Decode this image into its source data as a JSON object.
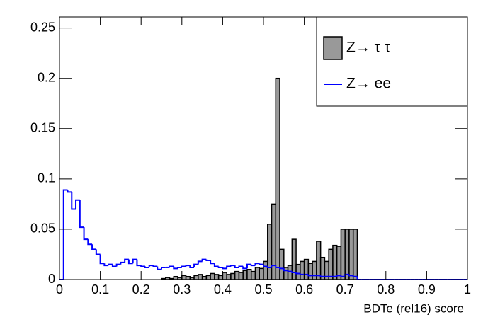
{
  "chart_data": {
    "type": "histogram",
    "x_label": "BDTe (rel16) score",
    "bins": [
      0,
      0.01,
      0.02,
      0.03,
      0.04,
      0.05,
      0.06,
      0.07,
      0.08,
      0.09,
      0.1,
      0.11,
      0.12,
      0.13,
      0.14,
      0.15,
      0.16,
      0.17,
      0.18,
      0.19,
      0.2,
      0.21,
      0.22,
      0.23,
      0.24,
      0.25,
      0.26,
      0.27,
      0.28,
      0.29,
      0.3,
      0.31,
      0.32,
      0.33,
      0.34,
      0.35,
      0.36,
      0.37,
      0.38,
      0.39,
      0.4,
      0.41,
      0.42,
      0.43,
      0.44,
      0.45,
      0.46,
      0.47,
      0.48,
      0.49,
      0.5,
      0.51,
      0.52,
      0.53,
      0.54,
      0.55,
      0.56,
      0.57,
      0.58,
      0.59,
      0.6,
      0.61,
      0.62,
      0.63,
      0.64,
      0.65,
      0.66,
      0.67,
      0.68,
      0.69,
      0.7,
      0.71,
      0.72,
      0.73,
      0.74,
      0.75,
      0.76,
      0.77,
      0.78,
      0.79,
      0.8,
      0.81,
      0.82,
      0.83,
      0.84,
      0.85,
      0.86,
      0.87,
      0.88,
      0.89,
      0.9,
      0.91,
      0.92,
      0.93,
      0.94,
      0.95,
      0.96,
      0.97,
      0.98,
      0.99,
      1
    ],
    "series": [
      {
        "name": "Z→ τ τ",
        "color": "#999999",
        "style": "filled",
        "values": [
          0,
          0,
          0,
          0,
          0,
          0,
          0,
          0,
          0,
          0,
          0,
          0,
          0,
          0,
          0,
          0,
          0,
          0,
          0,
          0,
          0,
          0,
          0,
          0,
          0,
          0.001,
          0.002,
          0.001,
          0.003,
          0.002,
          0.004,
          0.003,
          0.002,
          0.004,
          0.005,
          0.003,
          0.004,
          0.006,
          0.005,
          0.004,
          0.007,
          0.005,
          0.006,
          0.008,
          0.007,
          0.009,
          0.01,
          0.008,
          0.012,
          0.011,
          0.018,
          0.055,
          0.075,
          0.2,
          0.03,
          0.012,
          0.014,
          0.04,
          0.015,
          0.018,
          0.02,
          0.016,
          0.018,
          0.038,
          0.022,
          0.018,
          0.03,
          0.034,
          0.033,
          0.05,
          0.05,
          0.05,
          0.05,
          0,
          0,
          0,
          0,
          0,
          0,
          0,
          0,
          0,
          0,
          0,
          0,
          0,
          0,
          0,
          0,
          0,
          0,
          0,
          0,
          0,
          0,
          0,
          0,
          0,
          0,
          0
        ]
      },
      {
        "name": "Z→ ee",
        "color": "#0000ff",
        "style": "line",
        "values": [
          0,
          0.089,
          0.087,
          0.07,
          0.079,
          0.052,
          0.04,
          0.035,
          0.03,
          0.025,
          0.016,
          0.014,
          0.015,
          0.013,
          0.015,
          0.017,
          0.02,
          0.016,
          0.02,
          0.014,
          0.013,
          0.012,
          0.014,
          0.013,
          0.01,
          0.012,
          0.012,
          0.013,
          0.011,
          0.012,
          0.013,
          0.014,
          0.012,
          0.015,
          0.018,
          0.02,
          0.019,
          0.016,
          0.013,
          0.012,
          0.011,
          0.013,
          0.014,
          0.012,
          0.013,
          0.011,
          0.015,
          0.014,
          0.016,
          0.015,
          0.013,
          0.012,
          0.014,
          0.012,
          0.011,
          0.009,
          0.008,
          0.007,
          0.006,
          0.005,
          0.005,
          0.004,
          0.004,
          0.004,
          0.003,
          0.003,
          0.003,
          0.003,
          0.004,
          0.003,
          0.005,
          0.004,
          0.003,
          0,
          0,
          0,
          0,
          0,
          0,
          0,
          0,
          0,
          0,
          0,
          0,
          0,
          0,
          0,
          0,
          0,
          0,
          0,
          0,
          0,
          0,
          0,
          0,
          0,
          0,
          0
        ]
      }
    ],
    "xlim": [
      0,
      1
    ],
    "xticks": [
      0,
      0.1,
      0.2,
      0.3,
      0.4,
      0.5,
      0.6,
      0.7,
      0.8,
      0.9,
      1
    ],
    "ylim": [
      0,
      0.261
    ],
    "yticks": [
      0,
      0.05,
      0.1,
      0.15,
      0.2,
      0.25
    ],
    "legend": "top-right"
  }
}
